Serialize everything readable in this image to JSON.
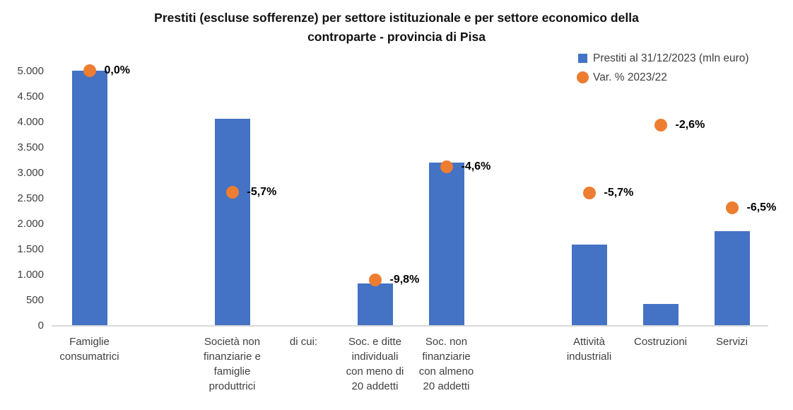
{
  "title": {
    "line1": "Prestiti (escluse sofferenze) per settore istituzionale e per settore economico della",
    "line2": "controparte - provincia di Pisa"
  },
  "legend": {
    "items": [
      {
        "label": "Prestiti al 31/12/2023 (mln euro)",
        "marker": "square",
        "color": "#4472C4"
      },
      {
        "label": "Var. % 2023/22",
        "marker": "circle",
        "color": "#ED7D31"
      }
    ]
  },
  "colors": {
    "bar": "#4472C4",
    "marker": "#ED7D31",
    "axis_line": "#D9D9D9",
    "tick_text": "#404040",
    "data_label": "#000000"
  },
  "chart_data": {
    "type": "bar",
    "subtype": "combo bar + scatter markers",
    "title": "Prestiti (escluse sofferenze) per settore istituzionale e per settore economico della controparte - provincia di Pisa",
    "xlabel": "",
    "ylabel": "",
    "ylim": [
      0,
      5000
    ],
    "grid": false,
    "legend_position": "top-right",
    "y_ticks": [
      {
        "value": 0,
        "label": "0"
      },
      {
        "value": 500,
        "label": "500"
      },
      {
        "value": 1000,
        "label": "1.000"
      },
      {
        "value": 1500,
        "label": "1.500"
      },
      {
        "value": 2000,
        "label": "2.000"
      },
      {
        "value": 2500,
        "label": "2.500"
      },
      {
        "value": 3000,
        "label": "3.000"
      },
      {
        "value": 3500,
        "label": "3.500"
      },
      {
        "value": 4000,
        "label": "4.000"
      },
      {
        "value": 4500,
        "label": "4.500"
      },
      {
        "value": 5000,
        "label": "5.000"
      }
    ],
    "series": [
      {
        "name": "Prestiti al 31/12/2023 (mln euro)",
        "type": "bar",
        "color": "#4472C4"
      },
      {
        "name": "Var. % 2023/22",
        "type": "scatter",
        "color": "#ED7D31"
      }
    ],
    "categories": [
      {
        "label": "Famiglie consumatrici",
        "label_lines": [
          "Famiglie",
          "consumatrici"
        ],
        "bar_value": 5000,
        "var_pct": 0.0,
        "var_label": "0,0%",
        "marker_y_primary": 5000
      },
      {
        "label": "",
        "label_lines": [],
        "bar_value": null,
        "var_pct": null,
        "var_label": null,
        "marker_y_primary": null
      },
      {
        "label": "Società non finanziarie e famiglie produttrici",
        "label_lines": [
          "Società non",
          "finanziarie e",
          "famiglie",
          "produttrici"
        ],
        "bar_value": 4050,
        "var_pct": -5.7,
        "var_label": "-5,7%",
        "marker_y_primary": 2610
      },
      {
        "label": "di cui:",
        "label_lines": [
          "di cui:"
        ],
        "bar_value": null,
        "var_pct": null,
        "var_label": null,
        "marker_y_primary": null
      },
      {
        "label": "Soc. e ditte individuali con meno di 20 addetti",
        "label_lines": [
          "Soc. e ditte",
          "individuali",
          "con meno di",
          "20 addetti"
        ],
        "bar_value": 820,
        "var_pct": -9.8,
        "var_label": "-9,8%",
        "marker_y_primary": 890
      },
      {
        "label": "Soc. non finanziarie con almeno 20 addetti",
        "label_lines": [
          "Soc. non",
          "finanziarie",
          "con almeno",
          "20 addetti"
        ],
        "bar_value": 3200,
        "var_pct": -4.6,
        "var_label": "-4,6%",
        "marker_y_primary": 3110
      },
      {
        "label": "",
        "label_lines": [],
        "bar_value": null,
        "var_pct": null,
        "var_label": null,
        "marker_y_primary": null
      },
      {
        "label": "Attività industriali",
        "label_lines": [
          "Attività",
          "industriali"
        ],
        "bar_value": 1580,
        "var_pct": -5.7,
        "var_label": "-5,7%",
        "marker_y_primary": 2600
      },
      {
        "label": "Costruzioni",
        "label_lines": [
          "Costruzioni"
        ],
        "bar_value": 420,
        "var_pct": -2.6,
        "var_label": "-2,6%",
        "marker_y_primary": 3930
      },
      {
        "label": "Servizi",
        "label_lines": [
          "Servizi"
        ],
        "bar_value": 1850,
        "var_pct": -6.5,
        "var_label": "-6,5%",
        "marker_y_primary": 2310
      }
    ]
  }
}
